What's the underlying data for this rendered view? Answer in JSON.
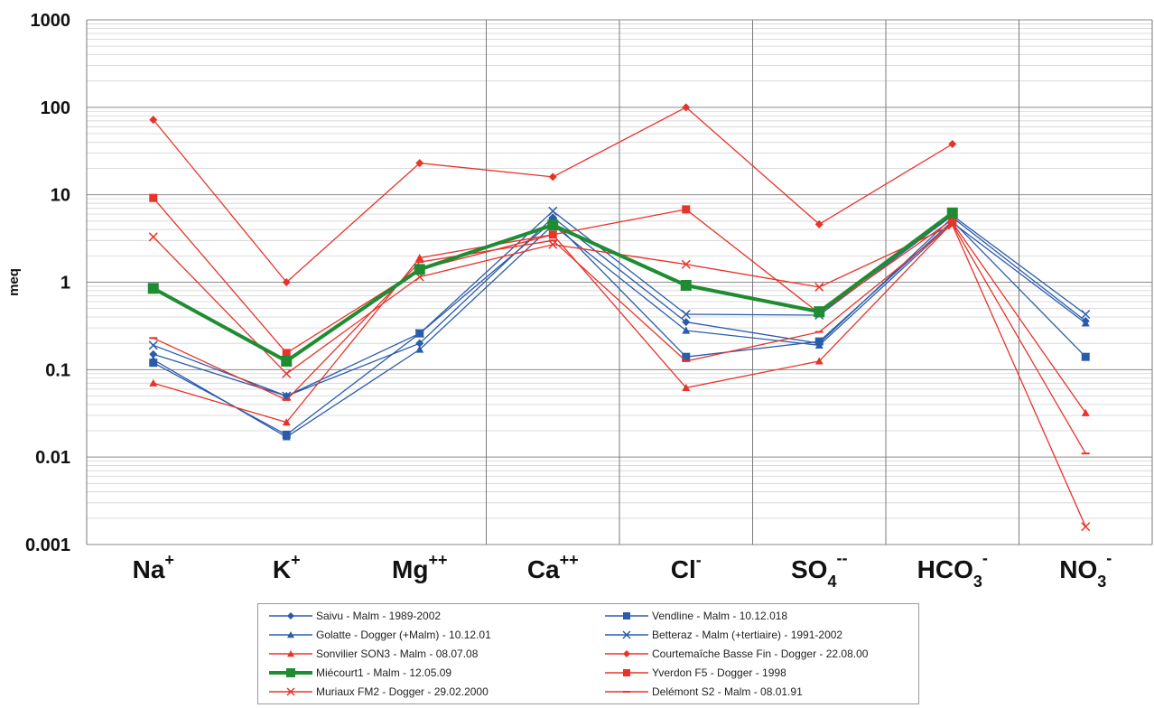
{
  "chart_data": {
    "type": "line",
    "title": "",
    "xlabel": "",
    "ylabel": "meq",
    "yscale": "log",
    "ylim": [
      0.001,
      1000
    ],
    "yticks": [
      "0.001",
      "0.01",
      "0.1",
      "1",
      "10",
      "100",
      "1000"
    ],
    "grid": true,
    "legend": "bottom",
    "categories": [
      {
        "base": "Na",
        "sup": "+",
        "sub": ""
      },
      {
        "base": "K",
        "sup": "+",
        "sub": ""
      },
      {
        "base": "Mg",
        "sup": "++",
        "sub": ""
      },
      {
        "base": "Ca",
        "sup": "++",
        "sub": ""
      },
      {
        "base": "Cl",
        "sup": "-",
        "sub": ""
      },
      {
        "base": "SO",
        "sup": "--",
        "sub": "4"
      },
      {
        "base": "HCO",
        "sup": "-",
        "sub": "3"
      },
      {
        "base": "NO",
        "sup": "-",
        "sub": "3"
      }
    ],
    "series": [
      {
        "name": "Saivu - Malm - 1989-2002",
        "color": "#2a5caa",
        "marker": "diamond",
        "width": 1.3,
        "values": [
          0.15,
          0.05,
          0.2,
          5.5,
          0.35,
          0.2,
          5.5,
          0.36
        ]
      },
      {
        "name": "Vendline - Malm - 10.12.018",
        "color": "#2a5caa",
        "marker": "square",
        "width": 1.3,
        "values": [
          0.12,
          0.018,
          0.26,
          5.0,
          0.14,
          0.21,
          5.0,
          0.14
        ]
      },
      {
        "name": "Golatte - Dogger (+Malm) - 10.12.01",
        "color": "#2a5caa",
        "marker": "triangle",
        "width": 1.3,
        "values": [
          0.13,
          0.017,
          0.17,
          4.5,
          0.28,
          0.19,
          4.8,
          0.34
        ]
      },
      {
        "name": "Betteraz - Malm (+tertiaire) - 1991-2002",
        "color": "#2a5caa",
        "marker": "x",
        "width": 1.3,
        "values": [
          0.19,
          0.05,
          0.26,
          6.5,
          0.43,
          0.42,
          5.8,
          0.43
        ]
      },
      {
        "name": "Sonvilier SON3 - Malm - 08.07.08",
        "color": "#e8332a",
        "marker": "triangle",
        "width": 1.3,
        "values": [
          0.07,
          0.025,
          1.9,
          3.5,
          0.062,
          0.125,
          4.8,
          0.032
        ]
      },
      {
        "name": "Courtemaîche Basse Fin - Dogger - 22.08.00",
        "color": "#e8332a",
        "marker": "diamond",
        "width": 1.3,
        "values": [
          72,
          1.0,
          23,
          16,
          100,
          4.6,
          38,
          null
        ]
      },
      {
        "name": "Miécourt1 - Malm - 12.05.09",
        "color": "#1f8c32",
        "marker": "square",
        "width": 4,
        "values": [
          0.85,
          0.125,
          1.4,
          4.5,
          0.92,
          0.46,
          6.2,
          null
        ]
      },
      {
        "name": "Yverdon F5 - Dogger - 1998",
        "color": "#e8332a",
        "marker": "square",
        "width": 1.3,
        "values": [
          9.2,
          0.155,
          1.4,
          3.5,
          6.8,
          0.44,
          5.2,
          null
        ]
      },
      {
        "name": "Muriaux FM2 - Dogger - 29.02.2000",
        "color": "#e8332a",
        "marker": "x",
        "width": 1.3,
        "values": [
          3.3,
          0.09,
          1.15,
          2.7,
          1.6,
          0.88,
          4.5,
          0.0016
        ]
      },
      {
        "name": "Delémont S2 - Malm - 08.01.91",
        "color": "#e8332a",
        "marker": "dash",
        "width": 1.3,
        "values": [
          0.23,
          0.045,
          1.7,
          3.0,
          0.125,
          0.27,
          4.6,
          0.011
        ]
      }
    ]
  }
}
